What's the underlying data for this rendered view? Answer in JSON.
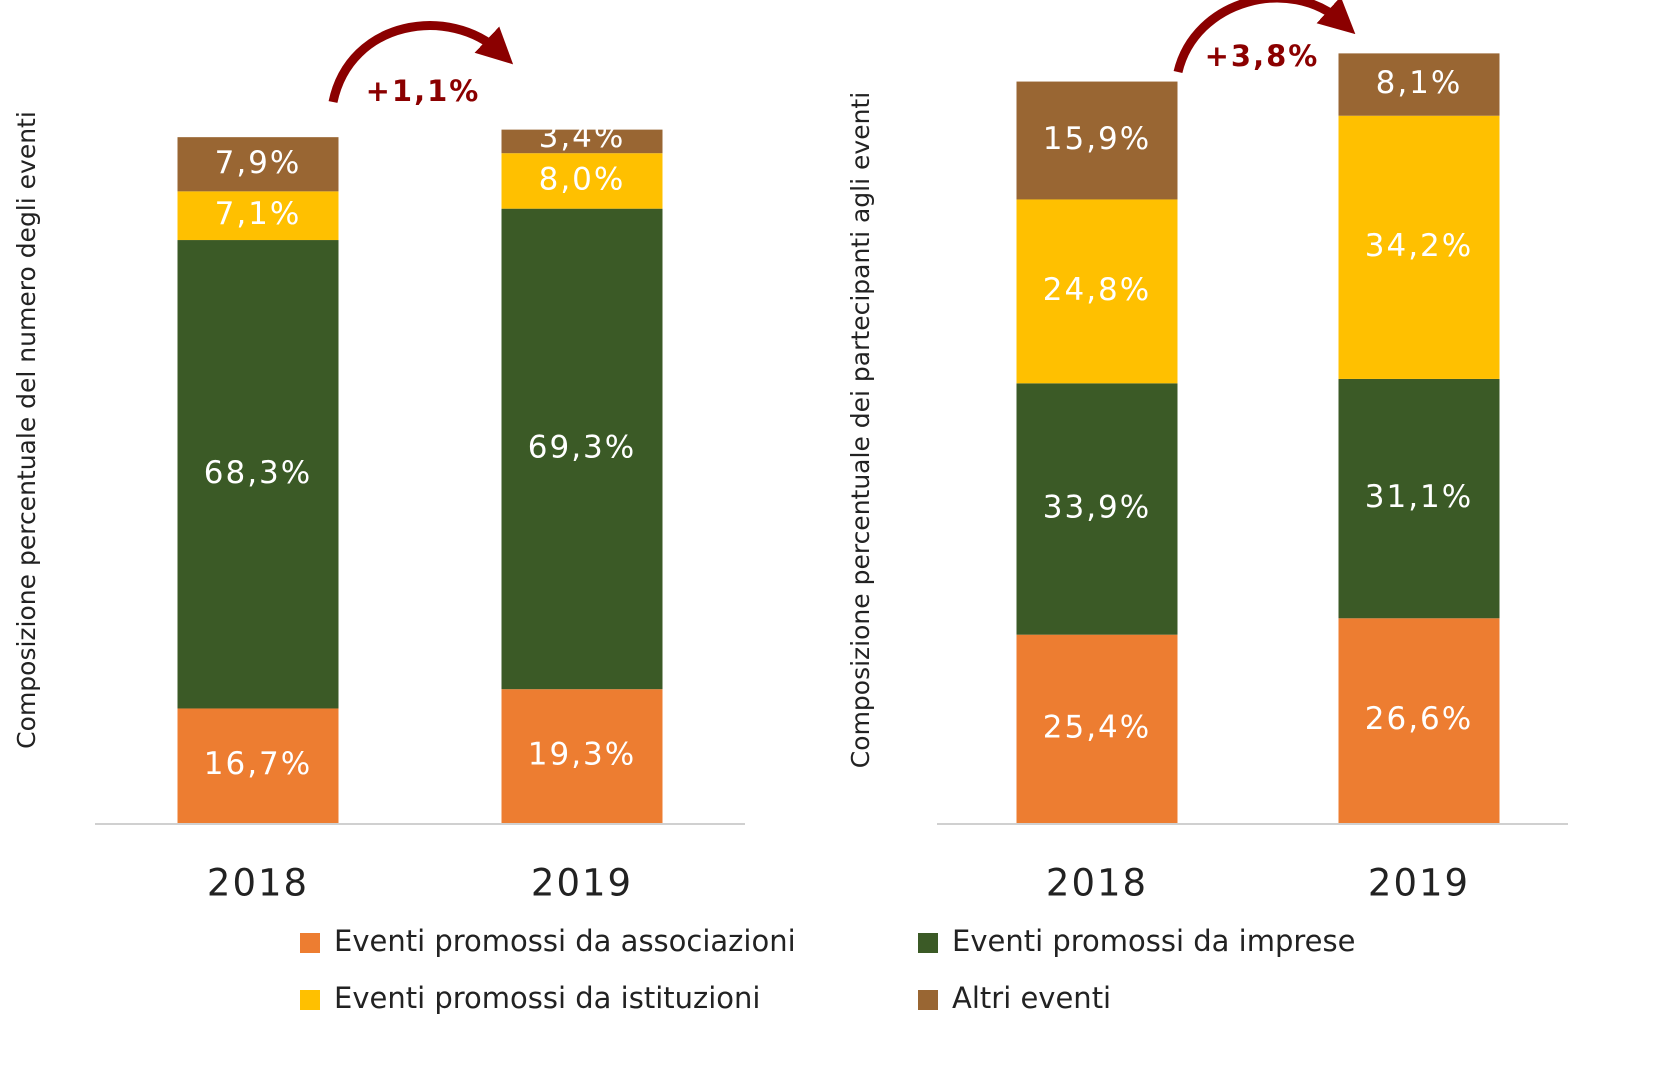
{
  "chart_data": [
    {
      "type": "bar",
      "stacked": true,
      "y_label": "Composizione percentuale del numero degli eventi",
      "categories": [
        "2018",
        "2019"
      ],
      "ylim": [
        0,
        120
      ],
      "annotation": {
        "value": 1.1,
        "label": "+1,1%"
      },
      "series": [
        {
          "name": "Eventi promossi da associazioni",
          "color": "#ed7d31",
          "values": [
            16.7,
            19.3
          ],
          "value_labels": [
            "16,7%",
            "19,3%"
          ]
        },
        {
          "name": "Eventi promossi da imprese",
          "color": "#3b5a26",
          "values": [
            68.3,
            69.3
          ],
          "value_labels": [
            "68,3%",
            "69,3%"
          ]
        },
        {
          "name": "Eventi promossi da istituzioni",
          "color": "#ffc000",
          "values": [
            7.1,
            8.0
          ],
          "value_labels": [
            "7,1%",
            "8,0%"
          ]
        },
        {
          "name": "Altri eventi",
          "color": "#996633",
          "values": [
            7.9,
            3.4
          ],
          "value_labels": [
            "7,9%",
            "3,4%"
          ]
        }
      ]
    },
    {
      "type": "bar",
      "stacked": true,
      "y_label": "Composizione percentuale dei partecipanti agli eventi",
      "categories": [
        "2018",
        "2019"
      ],
      "ylim": [
        0,
        111
      ],
      "annotation": {
        "value": 3.8,
        "label": "+3,8%"
      },
      "series": [
        {
          "color": "#ed7d31",
          "values": [
            25.4,
            26.6
          ],
          "value_labels": [
            "25,4%",
            "26,6%"
          ]
        },
        {
          "color": "#3b5a26",
          "values": [
            33.9,
            31.1
          ],
          "value_labels": [
            "33,9%",
            "31,1%"
          ]
        },
        {
          "color": "#ffc000",
          "values": [
            24.8,
            34.2
          ],
          "value_labels": [
            "24,8%",
            "34,2%"
          ]
        },
        {
          "color": "#996633",
          "values": [
            15.9,
            8.1
          ],
          "value_labels": [
            "15,9%",
            "8,1%"
          ]
        }
      ]
    }
  ]
}
